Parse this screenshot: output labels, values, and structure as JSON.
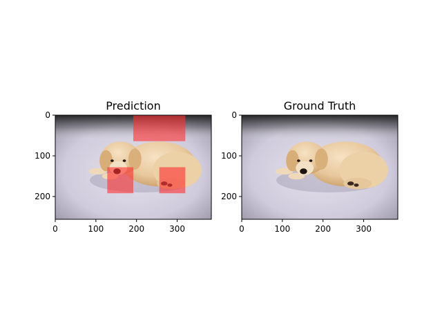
{
  "chart_data": [
    {
      "type": "image",
      "title": "Prediction",
      "image_content": "puppy-photo",
      "xlim": [
        0,
        384
      ],
      "ylim": [
        256,
        0
      ],
      "xticks": [
        0,
        100,
        200,
        300
      ],
      "yticks": [
        0,
        100,
        200
      ],
      "overlay_color": "#ff3030",
      "highlight_regions": [
        {
          "x0": 192,
          "x1": 320,
          "y0": 0,
          "y1": 64
        },
        {
          "x0": 128,
          "x1": 192,
          "y0": 128,
          "y1": 192
        },
        {
          "x0": 256,
          "x1": 320,
          "y0": 128,
          "y1": 192
        }
      ]
    },
    {
      "type": "image",
      "title": "Ground Truth",
      "image_content": "puppy-photo",
      "xlim": [
        0,
        384
      ],
      "ylim": [
        256,
        0
      ],
      "xticks": [
        0,
        100,
        200,
        300
      ],
      "yticks": [
        0,
        100,
        200
      ],
      "highlight_regions": []
    }
  ]
}
